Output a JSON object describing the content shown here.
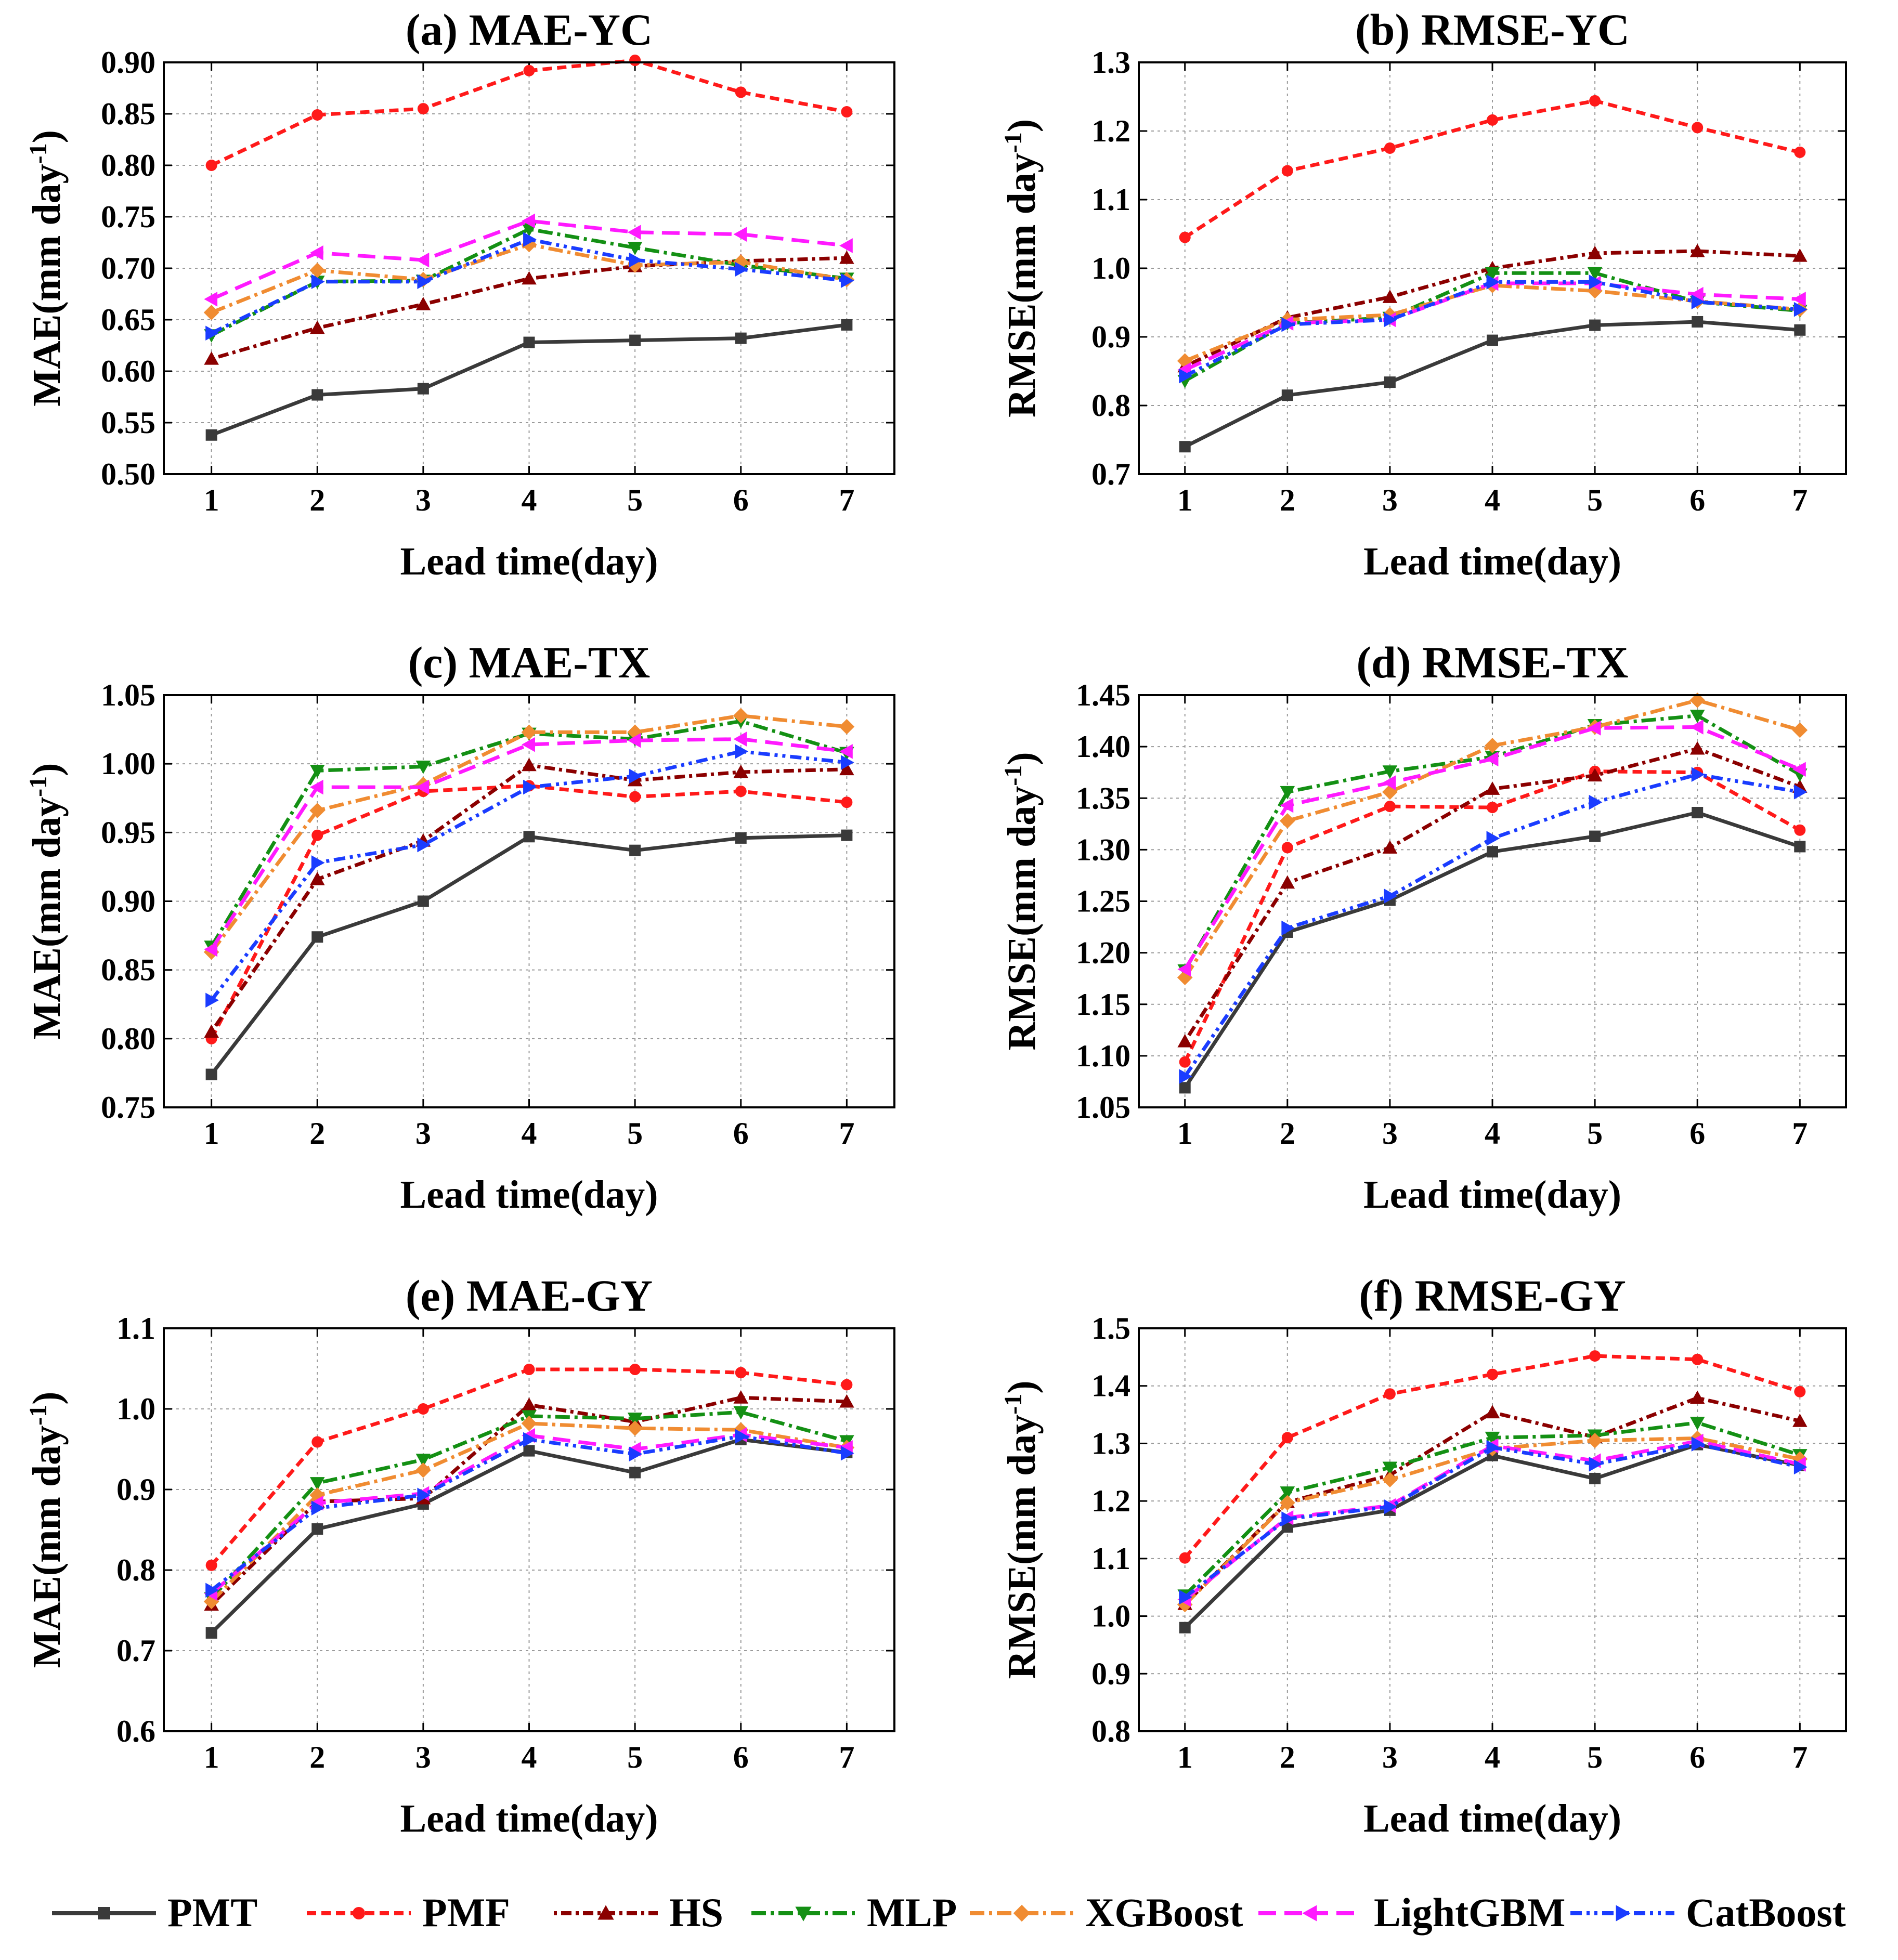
{
  "series_styles": [
    {
      "name": "PMT",
      "color": "#3a3a3a",
      "dash": "",
      "marker": "square"
    },
    {
      "name": "PMF",
      "color": "#ff1a1a",
      "dash": "18 10",
      "marker": "circle"
    },
    {
      "name": "HS",
      "color": "#8b0000",
      "dash": "6 8 20 8",
      "marker": "triangle-up"
    },
    {
      "name": "MLP",
      "color": "#149014",
      "dash": "28 9 6 9",
      "marker": "triangle-down"
    },
    {
      "name": "XGBoost",
      "color": "#f08c32",
      "dash": "28 9 6 9",
      "marker": "diamond"
    },
    {
      "name": "LightGBM",
      "color": "#ff1aff",
      "dash": "34 16",
      "marker": "triangle-left"
    },
    {
      "name": "CatBoost",
      "color": "#1a3cff",
      "dash": "22 9 6 9 6 9",
      "marker": "triangle-right"
    }
  ],
  "legend": {
    "labels": [
      "PMT",
      "PMF",
      "HS",
      "MLP",
      "XGBoost",
      "LightGBM",
      "CatBoost"
    ]
  },
  "chart_data": [
    {
      "type": "line",
      "title": "(a) MAE-YC",
      "xlabel": "Lead time(day)",
      "ylabel": "MAE(mm day⁻¹)",
      "ylabel_main": "MAE(mm day",
      "ylabel_sup": "-1",
      "ylabel_close": ")",
      "x": [
        1,
        2,
        3,
        4,
        5,
        6,
        7
      ],
      "xticks": [
        "1",
        "2",
        "3",
        "4",
        "5",
        "6",
        "7"
      ],
      "ylim": [
        0.5,
        0.9
      ],
      "yticks": [
        "0.50",
        "0.55",
        "0.60",
        "0.65",
        "0.70",
        "0.75",
        "0.80",
        "0.85",
        "0.90"
      ],
      "series": [
        {
          "name": "PMT",
          "values": [
            0.538,
            0.577,
            0.583,
            0.628,
            0.63,
            0.632,
            0.645
          ]
        },
        {
          "name": "PMF",
          "values": [
            0.8,
            0.849,
            0.855,
            0.892,
            0.902,
            0.871,
            0.852
          ]
        },
        {
          "name": "HS",
          "values": [
            0.612,
            0.642,
            0.665,
            0.69,
            0.702,
            0.707,
            0.71
          ]
        },
        {
          "name": "MLP",
          "values": [
            0.635,
            0.687,
            0.688,
            0.738,
            0.72,
            0.703,
            0.69
          ]
        },
        {
          "name": "XGBoost",
          "values": [
            0.657,
            0.698,
            0.689,
            0.723,
            0.703,
            0.706,
            0.689
          ]
        },
        {
          "name": "LightGBM",
          "values": [
            0.67,
            0.715,
            0.708,
            0.746,
            0.735,
            0.733,
            0.722
          ]
        },
        {
          "name": "CatBoost",
          "values": [
            0.637,
            0.687,
            0.687,
            0.728,
            0.708,
            0.699,
            0.688
          ]
        }
      ]
    },
    {
      "type": "line",
      "title": "(b) RMSE-YC",
      "xlabel": "Lead time(day)",
      "ylabel": "RMSE(mm day⁻¹)",
      "ylabel_main": "RMSE(mm day",
      "ylabel_sup": "-1",
      "ylabel_close": ")",
      "x": [
        1,
        2,
        3,
        4,
        5,
        6,
        7
      ],
      "xticks": [
        "1",
        "2",
        "3",
        "4",
        "5",
        "6",
        "7"
      ],
      "ylim": [
        0.7,
        1.3
      ],
      "yticks": [
        "0.7",
        "0.8",
        "0.9",
        "1.0",
        "1.1",
        "1.2",
        "1.3"
      ],
      "series": [
        {
          "name": "PMT",
          "values": [
            0.74,
            0.815,
            0.834,
            0.895,
            0.917,
            0.922,
            0.91
          ]
        },
        {
          "name": "PMF",
          "values": [
            1.045,
            1.142,
            1.175,
            1.216,
            1.244,
            1.205,
            1.169
          ]
        },
        {
          "name": "HS",
          "values": [
            0.857,
            0.928,
            0.958,
            1.0,
            1.022,
            1.025,
            1.018
          ]
        },
        {
          "name": "MLP",
          "values": [
            0.836,
            0.92,
            0.928,
            0.993,
            0.993,
            0.951,
            0.938
          ]
        },
        {
          "name": "XGBoost",
          "values": [
            0.865,
            0.925,
            0.932,
            0.975,
            0.967,
            0.952,
            0.94
          ]
        },
        {
          "name": "LightGBM",
          "values": [
            0.852,
            0.92,
            0.925,
            0.978,
            0.978,
            0.962,
            0.955
          ]
        },
        {
          "name": "CatBoost",
          "values": [
            0.843,
            0.918,
            0.925,
            0.98,
            0.98,
            0.951,
            0.94
          ]
        }
      ]
    },
    {
      "type": "line",
      "title": "(c) MAE-TX",
      "xlabel": "Lead time(day)",
      "ylabel": "MAE(mm day⁻¹)",
      "ylabel_main": "MAE(mm day",
      "ylabel_sup": "-1",
      "ylabel_close": ")",
      "x": [
        1,
        2,
        3,
        4,
        5,
        6,
        7
      ],
      "xticks": [
        "1",
        "2",
        "3",
        "4",
        "5",
        "6",
        "7"
      ],
      "ylim": [
        0.75,
        1.05
      ],
      "yticks": [
        "0.75",
        "0.80",
        "0.85",
        "0.90",
        "0.95",
        "1.00",
        "1.05"
      ],
      "series": [
        {
          "name": "PMT",
          "values": [
            0.774,
            0.874,
            0.9,
            0.947,
            0.937,
            0.946,
            0.948
          ]
        },
        {
          "name": "PMF",
          "values": [
            0.8,
            0.948,
            0.98,
            0.984,
            0.976,
            0.98,
            0.972
          ]
        },
        {
          "name": "HS",
          "values": [
            0.805,
            0.916,
            0.944,
            0.999,
            0.988,
            0.994,
            0.996
          ]
        },
        {
          "name": "MLP",
          "values": [
            0.867,
            0.995,
            0.998,
            1.022,
            1.018,
            1.031,
            1.008
          ]
        },
        {
          "name": "XGBoost",
          "values": [
            0.863,
            0.966,
            0.985,
            1.023,
            1.023,
            1.035,
            1.027
          ]
        },
        {
          "name": "LightGBM",
          "values": [
            0.865,
            0.983,
            0.983,
            1.014,
            1.017,
            1.018,
            1.009
          ]
        },
        {
          "name": "CatBoost",
          "values": [
            0.828,
            0.928,
            0.941,
            0.983,
            0.991,
            1.009,
            1.001
          ]
        }
      ]
    },
    {
      "type": "line",
      "title": "(d) RMSE-TX",
      "xlabel": "Lead time(day)",
      "ylabel": "RMSE(mm day⁻¹)",
      "ylabel_main": "RMSE(mm day",
      "ylabel_sup": "-1",
      "ylabel_close": ")",
      "x": [
        1,
        2,
        3,
        4,
        5,
        6,
        7
      ],
      "xticks": [
        "1",
        "2",
        "3",
        "4",
        "5",
        "6",
        "7"
      ],
      "ylim": [
        1.05,
        1.45
      ],
      "yticks": [
        "1.05",
        "1.10",
        "1.15",
        "1.20",
        "1.25",
        "1.30",
        "1.35",
        "1.40",
        "1.45"
      ],
      "series": [
        {
          "name": "PMT",
          "values": [
            1.069,
            1.22,
            1.251,
            1.298,
            1.313,
            1.336,
            1.303
          ]
        },
        {
          "name": "PMF",
          "values": [
            1.094,
            1.302,
            1.342,
            1.341,
            1.376,
            1.375,
            1.319
          ]
        },
        {
          "name": "HS",
          "values": [
            1.114,
            1.268,
            1.302,
            1.359,
            1.372,
            1.398,
            1.361
          ]
        },
        {
          "name": "MLP",
          "values": [
            1.183,
            1.356,
            1.376,
            1.39,
            1.421,
            1.43,
            1.373
          ]
        },
        {
          "name": "XGBoost",
          "values": [
            1.176,
            1.328,
            1.356,
            1.401,
            1.419,
            1.445,
            1.416
          ]
        },
        {
          "name": "LightGBM",
          "values": [
            1.184,
            1.343,
            1.365,
            1.388,
            1.418,
            1.419,
            1.378
          ]
        },
        {
          "name": "CatBoost",
          "values": [
            1.08,
            1.224,
            1.255,
            1.311,
            1.346,
            1.373,
            1.356
          ]
        }
      ]
    },
    {
      "type": "line",
      "title": "(e) MAE-GY",
      "xlabel": "Lead time(day)",
      "ylabel": "MAE(mm day⁻¹)",
      "ylabel_main": "MAE(mm day",
      "ylabel_sup": "-1",
      "ylabel_close": ")",
      "x": [
        1,
        2,
        3,
        4,
        5,
        6,
        7
      ],
      "xticks": [
        "1",
        "2",
        "3",
        "4",
        "5",
        "6",
        "7"
      ],
      "ylim": [
        0.6,
        1.1
      ],
      "yticks": [
        "0.6",
        "0.7",
        "0.8",
        "0.9",
        "1.0",
        "1.1"
      ],
      "series": [
        {
          "name": "PMT",
          "values": [
            0.722,
            0.851,
            0.882,
            0.948,
            0.921,
            0.962,
            0.946
          ]
        },
        {
          "name": "PMF",
          "values": [
            0.806,
            0.959,
            1.0,
            1.049,
            1.049,
            1.045,
            1.03
          ]
        },
        {
          "name": "HS",
          "values": [
            0.757,
            0.885,
            0.889,
            1.005,
            0.984,
            1.014,
            1.009
          ]
        },
        {
          "name": "MLP",
          "values": [
            0.765,
            0.908,
            0.937,
            0.991,
            0.988,
            0.996,
            0.96
          ]
        },
        {
          "name": "XGBoost",
          "values": [
            0.761,
            0.893,
            0.924,
            0.982,
            0.976,
            0.974,
            0.952
          ]
        },
        {
          "name": "LightGBM",
          "values": [
            0.771,
            0.883,
            0.895,
            0.967,
            0.95,
            0.968,
            0.952
          ]
        },
        {
          "name": "CatBoost",
          "values": [
            0.775,
            0.877,
            0.893,
            0.962,
            0.944,
            0.966,
            0.945
          ]
        }
      ]
    },
    {
      "type": "line",
      "title": "(f) RMSE-GY",
      "xlabel": "Lead time(day)",
      "ylabel": "RMSE(mm day⁻¹)",
      "ylabel_main": "RMSE(mm day",
      "ylabel_sup": "-1",
      "ylabel_close": ")",
      "x": [
        1,
        2,
        3,
        4,
        5,
        6,
        7
      ],
      "xticks": [
        "1",
        "2",
        "3",
        "4",
        "5",
        "6",
        "7"
      ],
      "ylim": [
        0.8,
        1.5
      ],
      "yticks": [
        "0.8",
        "0.9",
        "1.0",
        "1.1",
        "1.2",
        "1.3",
        "1.4",
        "1.5"
      ],
      "series": [
        {
          "name": "PMT",
          "values": [
            0.98,
            1.155,
            1.184,
            1.279,
            1.239,
            1.298,
            1.262
          ]
        },
        {
          "name": "PMF",
          "values": [
            1.101,
            1.31,
            1.386,
            1.42,
            1.452,
            1.446,
            1.39
          ]
        },
        {
          "name": "HS",
          "values": [
            1.021,
            1.198,
            1.245,
            1.354,
            1.311,
            1.379,
            1.339
          ]
        },
        {
          "name": "MLP",
          "values": [
            1.036,
            1.215,
            1.258,
            1.31,
            1.314,
            1.336,
            1.28
          ]
        },
        {
          "name": "XGBoost",
          "values": [
            1.02,
            1.197,
            1.237,
            1.291,
            1.305,
            1.309,
            1.273
          ]
        },
        {
          "name": "LightGBM",
          "values": [
            1.029,
            1.171,
            1.192,
            1.296,
            1.27,
            1.304,
            1.264
          ]
        },
        {
          "name": "CatBoost",
          "values": [
            1.033,
            1.169,
            1.19,
            1.293,
            1.264,
            1.299,
            1.259
          ]
        }
      ]
    }
  ]
}
